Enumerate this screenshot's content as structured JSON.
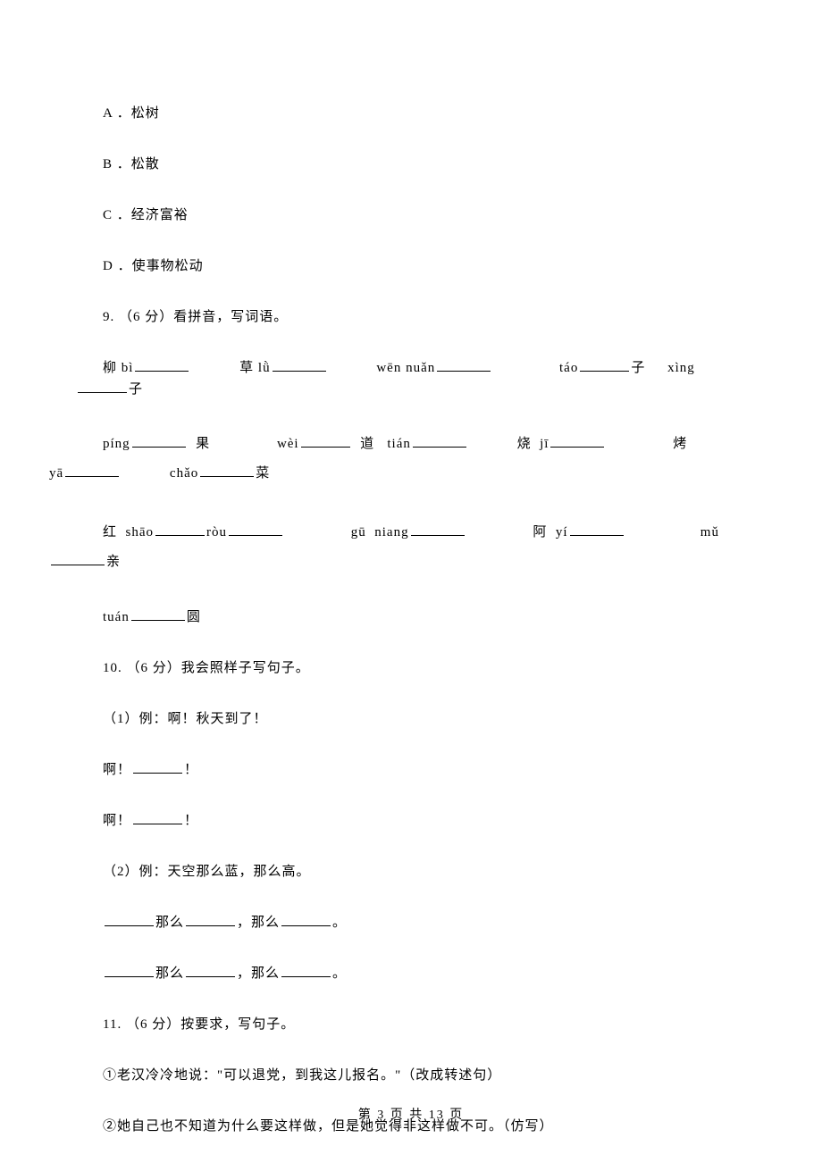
{
  "options": {
    "a": "A ．松树",
    "b": "B ．松散",
    "c": "C ．经济富裕",
    "d": "D ．使事物松动"
  },
  "q9": {
    "stem": "9. （6 分）看拼音，写词语。",
    "row1": {
      "seg1": "柳 bì",
      "seg2": "草 lǜ",
      "seg3": "wēn nuǎn",
      "seg4": "táo",
      "seg4b": "子",
      "seg5": "xìng",
      "seg5b": "子"
    },
    "row2": {
      "seg1": "píng",
      "seg1b": "果",
      "seg2": "wèi",
      "seg2b": "道",
      "seg3": "tián",
      "seg4": "烧",
      "seg4b": "jī",
      "seg5": "烤"
    },
    "row2b": {
      "seg1": "yā",
      "seg2": "chǎo",
      "seg2b": "菜"
    },
    "row3": {
      "seg1": "红",
      "seg1b": "shāo",
      "seg1c": "ròu",
      "seg2": "gū",
      "seg2b": "niang",
      "seg3": "阿",
      "seg3b": "yí",
      "seg4": "mǔ"
    },
    "row3b": {
      "seg1": "亲"
    },
    "row4": {
      "seg1": "tuán",
      "seg1b": "圆"
    }
  },
  "q10": {
    "stem": "10. （6 分）我会照样子写句子。",
    "p1": "（1）例：啊！秋天到了！",
    "fill1a": "啊！",
    "fill1b": "！",
    "p2": "（2）例：天空那么蓝，那么高。",
    "fill2a": "那么",
    "fill2b": "，那么",
    "fill2c": "。"
  },
  "q11": {
    "stem": "11. （6 分）按要求，写句子。",
    "p1": "①老汉冷冷地说：\"可以退党，到我这儿报名。\"（改成转述句）",
    "p2": "②她自己也不知道为什么要这样做，但是她觉得非这样做不可。（仿写）"
  },
  "footer": "第 3 页 共 13 页"
}
